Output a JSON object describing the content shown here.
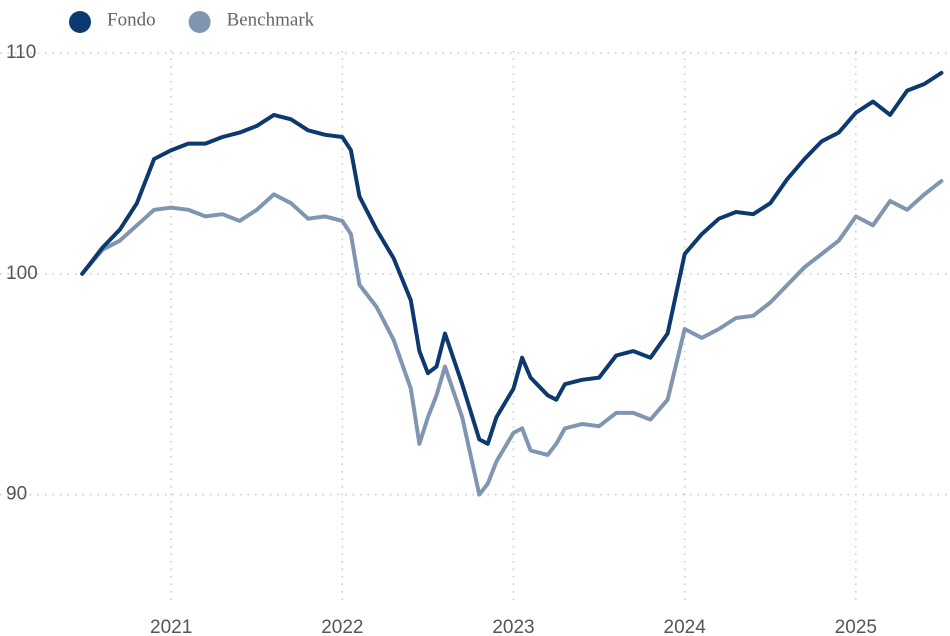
{
  "chart_data": {
    "type": "line",
    "x": [
      2020.48,
      2020.6,
      2020.7,
      2020.8,
      2020.9,
      2021.0,
      2021.1,
      2021.2,
      2021.3,
      2021.4,
      2021.5,
      2021.6,
      2021.7,
      2021.8,
      2021.9,
      2022.0,
      2022.05,
      2022.1,
      2022.2,
      2022.3,
      2022.4,
      2022.45,
      2022.5,
      2022.55,
      2022.6,
      2022.7,
      2022.8,
      2022.85,
      2022.9,
      2023.0,
      2023.05,
      2023.1,
      2023.2,
      2023.25,
      2023.3,
      2023.4,
      2023.5,
      2023.6,
      2023.7,
      2023.8,
      2023.9,
      2024.0,
      2024.1,
      2024.2,
      2024.3,
      2024.4,
      2024.5,
      2024.6,
      2024.7,
      2024.8,
      2024.9,
      2025.0,
      2025.1,
      2025.2,
      2025.3,
      2025.4,
      2025.5
    ],
    "series": [
      {
        "name": "Fondo",
        "color": "#0d3a6e",
        "values": [
          100,
          101.2,
          102,
          103.2,
          105.2,
          105.6,
          105.9,
          105.9,
          106.2,
          106.4,
          106.7,
          107.2,
          107,
          106.5,
          106.3,
          106.2,
          105.6,
          103.5,
          102,
          100.7,
          98.8,
          96.5,
          95.5,
          95.8,
          97.3,
          95,
          92.5,
          92.3,
          93.5,
          94.8,
          96.2,
          95.3,
          94.5,
          94.3,
          95,
          95.2,
          95.3,
          96.3,
          96.5,
          96.2,
          97.3,
          100.9,
          101.8,
          102.5,
          102.8,
          102.7,
          103.2,
          104.3,
          105.2,
          106,
          106.4,
          107.3,
          107.8,
          107.2,
          108.3,
          108.6,
          109.1
        ]
      },
      {
        "name": "Benchmark",
        "color": "#7f95b0",
        "values": [
          100,
          101.1,
          101.5,
          102.2,
          102.9,
          103,
          102.9,
          102.6,
          102.7,
          102.4,
          102.9,
          103.6,
          103.2,
          102.5,
          102.6,
          102.4,
          101.8,
          99.5,
          98.5,
          97,
          94.8,
          92.3,
          93.5,
          94.5,
          95.8,
          93.5,
          90,
          90.5,
          91.5,
          92.8,
          93,
          92,
          91.8,
          92.3,
          93,
          93.2,
          93.1,
          93.7,
          93.7,
          93.4,
          94.3,
          97.5,
          97.1,
          97.5,
          98,
          98.1,
          98.7,
          99.5,
          100.3,
          100.9,
          101.5,
          102.6,
          102.2,
          103.3,
          102.9,
          103.6,
          104.2
        ]
      }
    ],
    "xlim": [
      2020.0,
      2025.55
    ],
    "xticks": [
      2021,
      2022,
      2023,
      2024,
      2025
    ],
    "ylim": [
      85,
      111
    ],
    "yticks": [
      90,
      100,
      110
    ],
    "grid": true,
    "legend": "top-left"
  }
}
